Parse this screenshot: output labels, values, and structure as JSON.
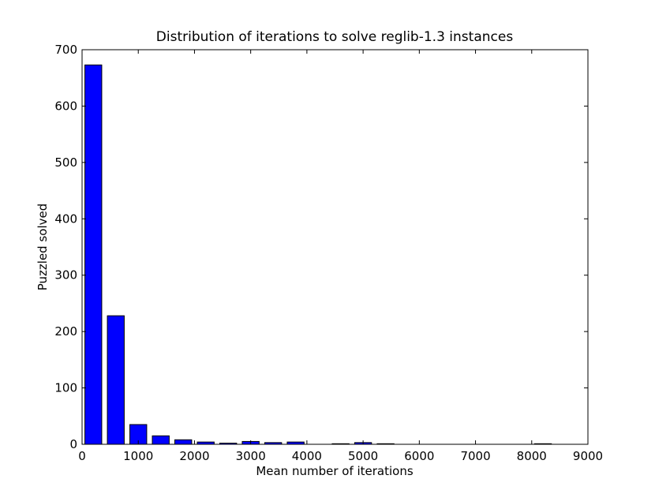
{
  "chart_data": {
    "type": "bar",
    "title": "Distribution of iterations to solve reglib-1.3 instances",
    "xlabel": "Mean number of iterations",
    "ylabel": "Puzzled solved",
    "xlim": [
      0,
      9000
    ],
    "ylim": [
      0,
      700
    ],
    "grid": false,
    "bar_color": "#0000ff",
    "bar_edge_color": "#000000",
    "bin_width": 400,
    "bar_width": 300,
    "x_ticks": [
      0,
      1000,
      2000,
      3000,
      4000,
      5000,
      6000,
      7000,
      8000,
      9000
    ],
    "y_ticks": [
      0,
      100,
      200,
      300,
      400,
      500,
      600,
      700
    ],
    "x": [
      200,
      600,
      1000,
      1400,
      1800,
      2200,
      2600,
      3000,
      3400,
      3800,
      4200,
      4600,
      5000,
      5400,
      5800,
      6200,
      6600,
      7000,
      7400,
      7800,
      8200
    ],
    "values": [
      673,
      228,
      35,
      15,
      8,
      4,
      2,
      5,
      3,
      4,
      0,
      1,
      3,
      1,
      0,
      0,
      0,
      0,
      0,
      0,
      1
    ]
  }
}
